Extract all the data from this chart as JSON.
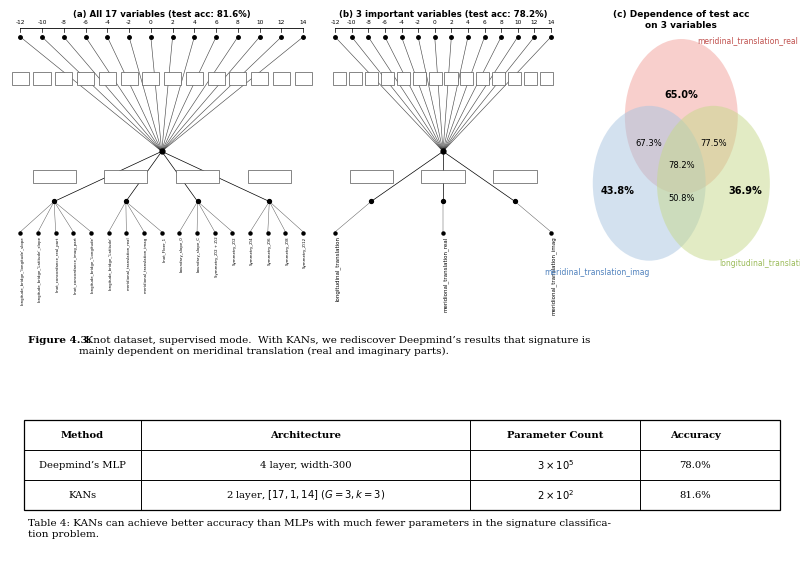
{
  "fig_width": 8.0,
  "fig_height": 5.61,
  "bg_color": "#ffffff",
  "panel_a_title": "(a) All 17 variables (test acc: 81.6%)",
  "panel_b_title": "(b) 3 important variables (test acc: 78.2%)",
  "panel_c_title": "(c) Dependence of test acc\non 3 variables",
  "axis_ticks": [
    -12,
    -10,
    -8,
    -6,
    -4,
    -2,
    0,
    2,
    4,
    6,
    8,
    10,
    12,
    14
  ],
  "venn_labels": [
    "meridinal_translation_real",
    "meridinal_translation_imag",
    "longitudinal_translation"
  ],
  "venn_label_colors": [
    "#c0504d",
    "#4f81bd",
    "#9bbb59"
  ],
  "venn_colors": [
    "#f2a09a",
    "#a8c4e0",
    "#c6d98a"
  ],
  "venn_alpha": 0.5,
  "venn_pct_Aonly": "65.0%",
  "venn_pct_Bonly": "43.8%",
  "venn_pct_Conly": "36.9%",
  "venn_pct_AB": "67.3%",
  "venn_pct_AC": "77.5%",
  "venn_pct_BC": "50.8%",
  "venn_pct_ABC": "78.2%",
  "figure_caption_bold": "Figure 4.3:",
  "figure_caption_rest": "  Knot dataset, supervised mode.  With KANs, we rediscover Deepmind’s results that signature is\nmainly dependent on meridinal translation (real and imaginary parts).",
  "table_caption": "Table 4: KANs can achieve better accuracy than MLPs with much fewer parameters in the signature classifica-\ntion problem.",
  "table_headers": [
    "Method",
    "Architecture",
    "Parameter Count",
    "Accuracy"
  ],
  "table_row1_col0": "Deepmind’s MLP",
  "table_row1_col1": "4 layer, width-300",
  "table_row1_col2": "$3 \\times 10^5$",
  "table_row1_col3": "78.0%",
  "table_row2_col0": "KANs",
  "table_row2_col1": "2 layer, $[17, 1, 14]$ $(G = 3, k = 3)$",
  "table_row2_col2": "$2 \\times 10^2$",
  "table_row2_col3": "81.6%",
  "panel_a_vars": [
    "longitude_bridge_'longitude'_slope",
    "longitude_bridge_'Latitude'_slope",
    "knot_concordance_real_part",
    "knot_concordance_imag_part",
    "longitude_bridge_'Longitude'",
    "longitude_bridge_'Latitude'",
    "meridional_translation_real",
    "meridional_translation_imag",
    "knot_Floer_1",
    "boundary_slope_0",
    "boundary_slope_C",
    "Symmetry_Z/2 + Z/2",
    "Symmetry_Z/2",
    "Symmetry_Z/4",
    "Symmetry_Z/6",
    "Symmetry_Z/8",
    "Symmetry_Z/12"
  ],
  "panel_b_vars": [
    "longitudinal_translation",
    "meridional_translation_real",
    "meridional_translation_imag"
  ]
}
